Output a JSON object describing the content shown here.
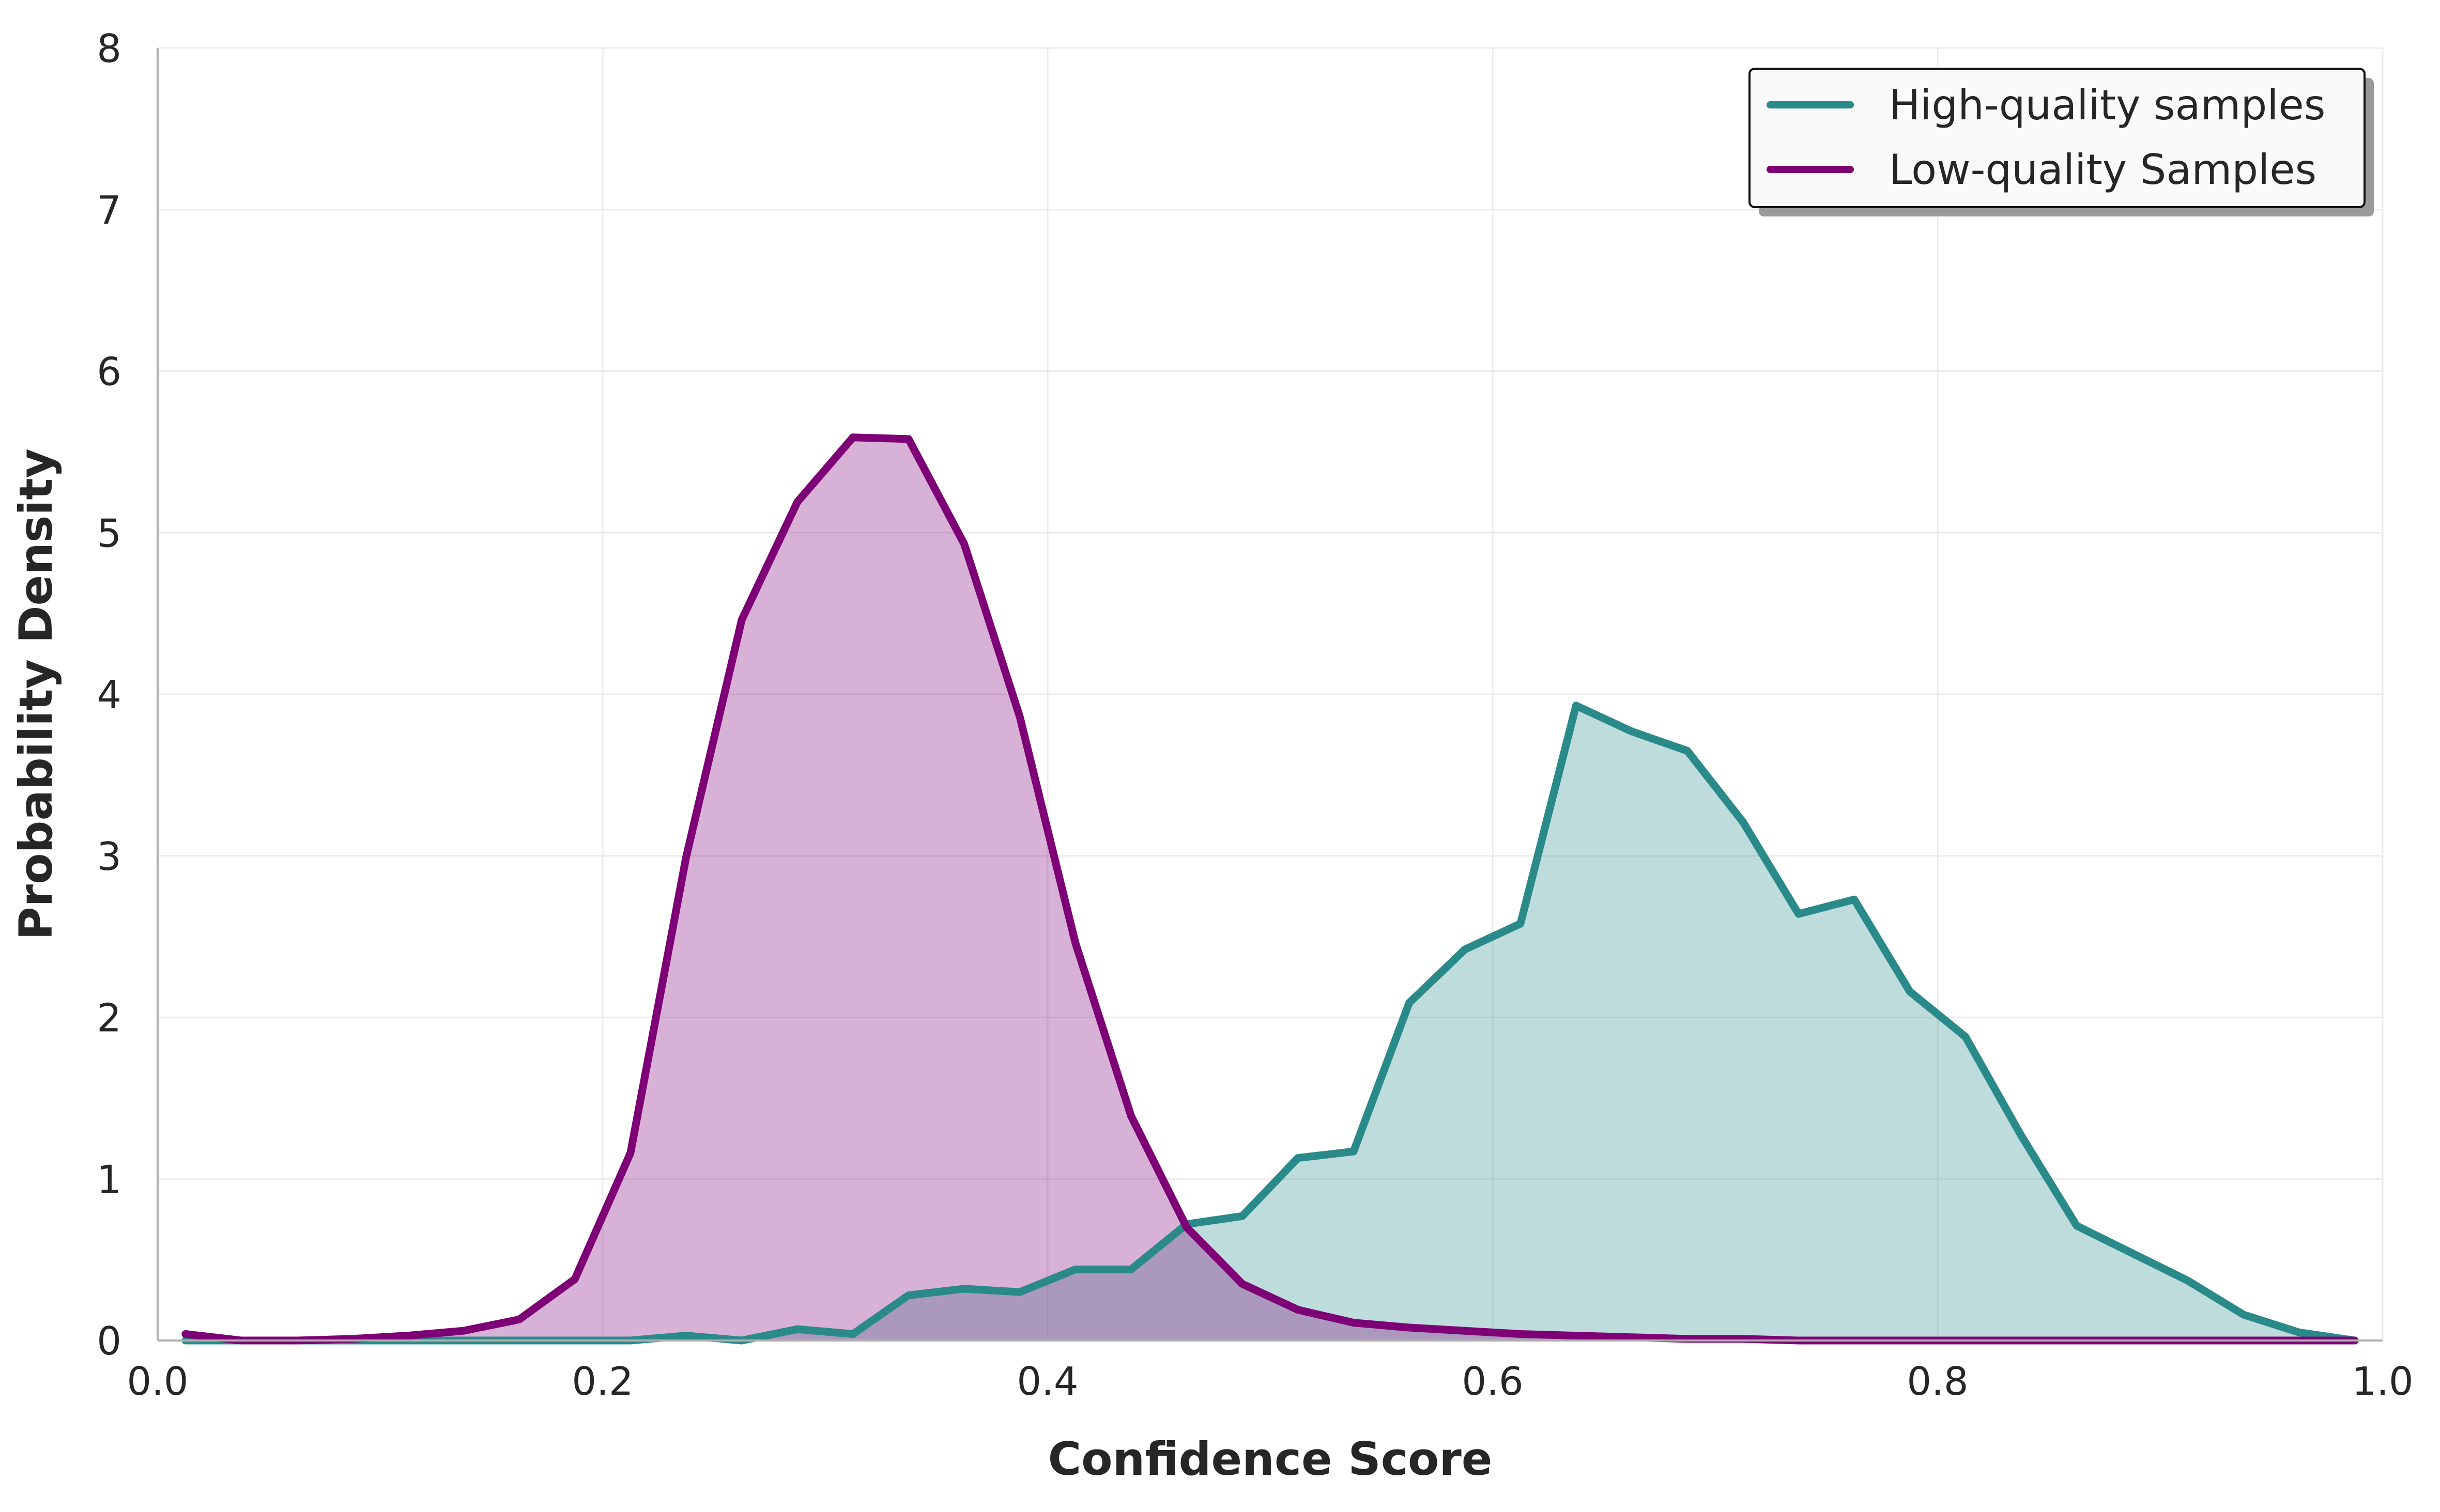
{
  "chart_data": {
    "type": "area",
    "title": "",
    "xlabel": "Confidence Score",
    "ylabel": "Probability Density",
    "xlim": [
      0.0,
      1.0
    ],
    "ylim": [
      0,
      8
    ],
    "x_ticks": [
      "0.0",
      "0.2",
      "0.4",
      "0.6",
      "0.8",
      "1.0"
    ],
    "y_ticks": [
      "0",
      "1",
      "2",
      "3",
      "4",
      "5",
      "6",
      "7",
      "8"
    ],
    "grid": true,
    "legend_position": "top-right",
    "series": [
      {
        "name": "High-quality samples",
        "color": "#2A8A8A",
        "fill": "#BCDCDD",
        "x": [
          0.0125,
          0.0375,
          0.0625,
          0.0875,
          0.1125,
          0.1375,
          0.1625,
          0.1875,
          0.2125,
          0.2375,
          0.2625,
          0.2875,
          0.3125,
          0.3375,
          0.3625,
          0.3875,
          0.4125,
          0.4375,
          0.4625,
          0.4875,
          0.5125,
          0.5375,
          0.5625,
          0.5875,
          0.6125,
          0.6375,
          0.6625,
          0.6875,
          0.7125,
          0.7375,
          0.7625,
          0.7875,
          0.8125,
          0.8375,
          0.8625,
          0.8875,
          0.9125,
          0.9375,
          0.9625,
          0.9875
        ],
        "y": [
          0.0,
          0.0,
          0.0,
          0.0,
          0.0,
          0.0,
          0.0,
          0.0,
          0.0,
          0.03,
          0.0,
          0.07,
          0.04,
          0.28,
          0.32,
          0.3,
          0.44,
          0.44,
          0.72,
          0.77,
          1.13,
          1.17,
          2.09,
          2.42,
          2.58,
          3.93,
          3.77,
          3.65,
          3.21,
          2.64,
          2.73,
          2.16,
          1.88,
          1.27,
          0.71,
          0.54,
          0.37,
          0.16,
          0.05,
          0.0
        ]
      },
      {
        "name": "Low-quality Samples",
        "color": "#7E0076",
        "fill": "#D7B0D4",
        "x": [
          0.0125,
          0.0375,
          0.0625,
          0.0875,
          0.1125,
          0.1375,
          0.1625,
          0.1875,
          0.2125,
          0.2375,
          0.2625,
          0.2875,
          0.3125,
          0.3375,
          0.3625,
          0.3875,
          0.4125,
          0.4375,
          0.4625,
          0.4875,
          0.5125,
          0.5375,
          0.5625,
          0.5875,
          0.6125,
          0.6375,
          0.6625,
          0.6875,
          0.7125,
          0.7375,
          0.7625,
          0.7875,
          0.8125,
          0.8375,
          0.8625,
          0.8875,
          0.9125,
          0.9375,
          0.9625,
          0.9875
        ],
        "y": [
          0.04,
          0.0,
          0.0,
          0.01,
          0.03,
          0.06,
          0.13,
          0.38,
          1.16,
          2.99,
          4.46,
          5.19,
          5.59,
          5.58,
          4.93,
          3.86,
          2.46,
          1.39,
          0.7,
          0.35,
          0.19,
          0.11,
          0.08,
          0.06,
          0.04,
          0.03,
          0.02,
          0.01,
          0.01,
          0.0,
          0.0,
          0.0,
          0.0,
          0.0,
          0.0,
          0.0,
          0.0,
          0.0,
          0.0,
          0.0
        ]
      }
    ]
  }
}
